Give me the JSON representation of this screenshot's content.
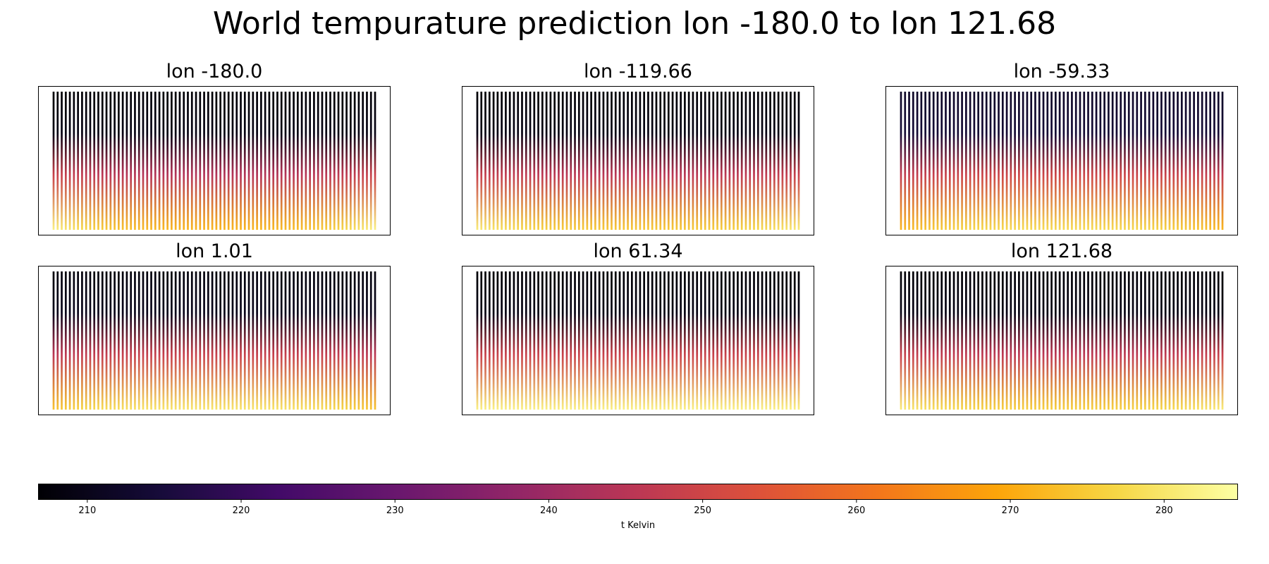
{
  "chart_data": {
    "type": "scatter",
    "title": "World tempurature prediction lon -180.0 to lon 121.68",
    "colormap": "inferno",
    "columns_per_panel": 80,
    "panels": [
      {
        "title": "lon -180.0",
        "lon": -180.0,
        "t_top": 207,
        "t_bottom": 272,
        "edge_warming": 10
      },
      {
        "title": "lon -119.66",
        "lon": -119.66,
        "t_top": 207,
        "t_bottom": 275,
        "edge_warming": 6
      },
      {
        "title": "lon -59.33",
        "lon": -59.33,
        "t_top": 212,
        "t_bottom": 278,
        "edge_warming": -6
      },
      {
        "title": "lon 1.01",
        "lon": 1.01,
        "t_top": 208,
        "t_bottom": 280,
        "edge_warming": -6
      },
      {
        "title": "lon 61.34",
        "lon": 61.34,
        "t_top": 207,
        "t_bottom": 282,
        "edge_warming": 0
      },
      {
        "title": "lon 121.68",
        "lon": 121.68,
        "t_top": 207,
        "t_bottom": 276,
        "edge_warming": 5
      }
    ],
    "colorbar": {
      "label": "t Kelvin",
      "range": [
        206.8,
        284.8
      ],
      "ticks": [
        210,
        220,
        230,
        240,
        250,
        260,
        270,
        280
      ],
      "tick_labels": [
        "210",
        "220",
        "230",
        "240",
        "250",
        "260",
        "270",
        "280"
      ]
    }
  }
}
